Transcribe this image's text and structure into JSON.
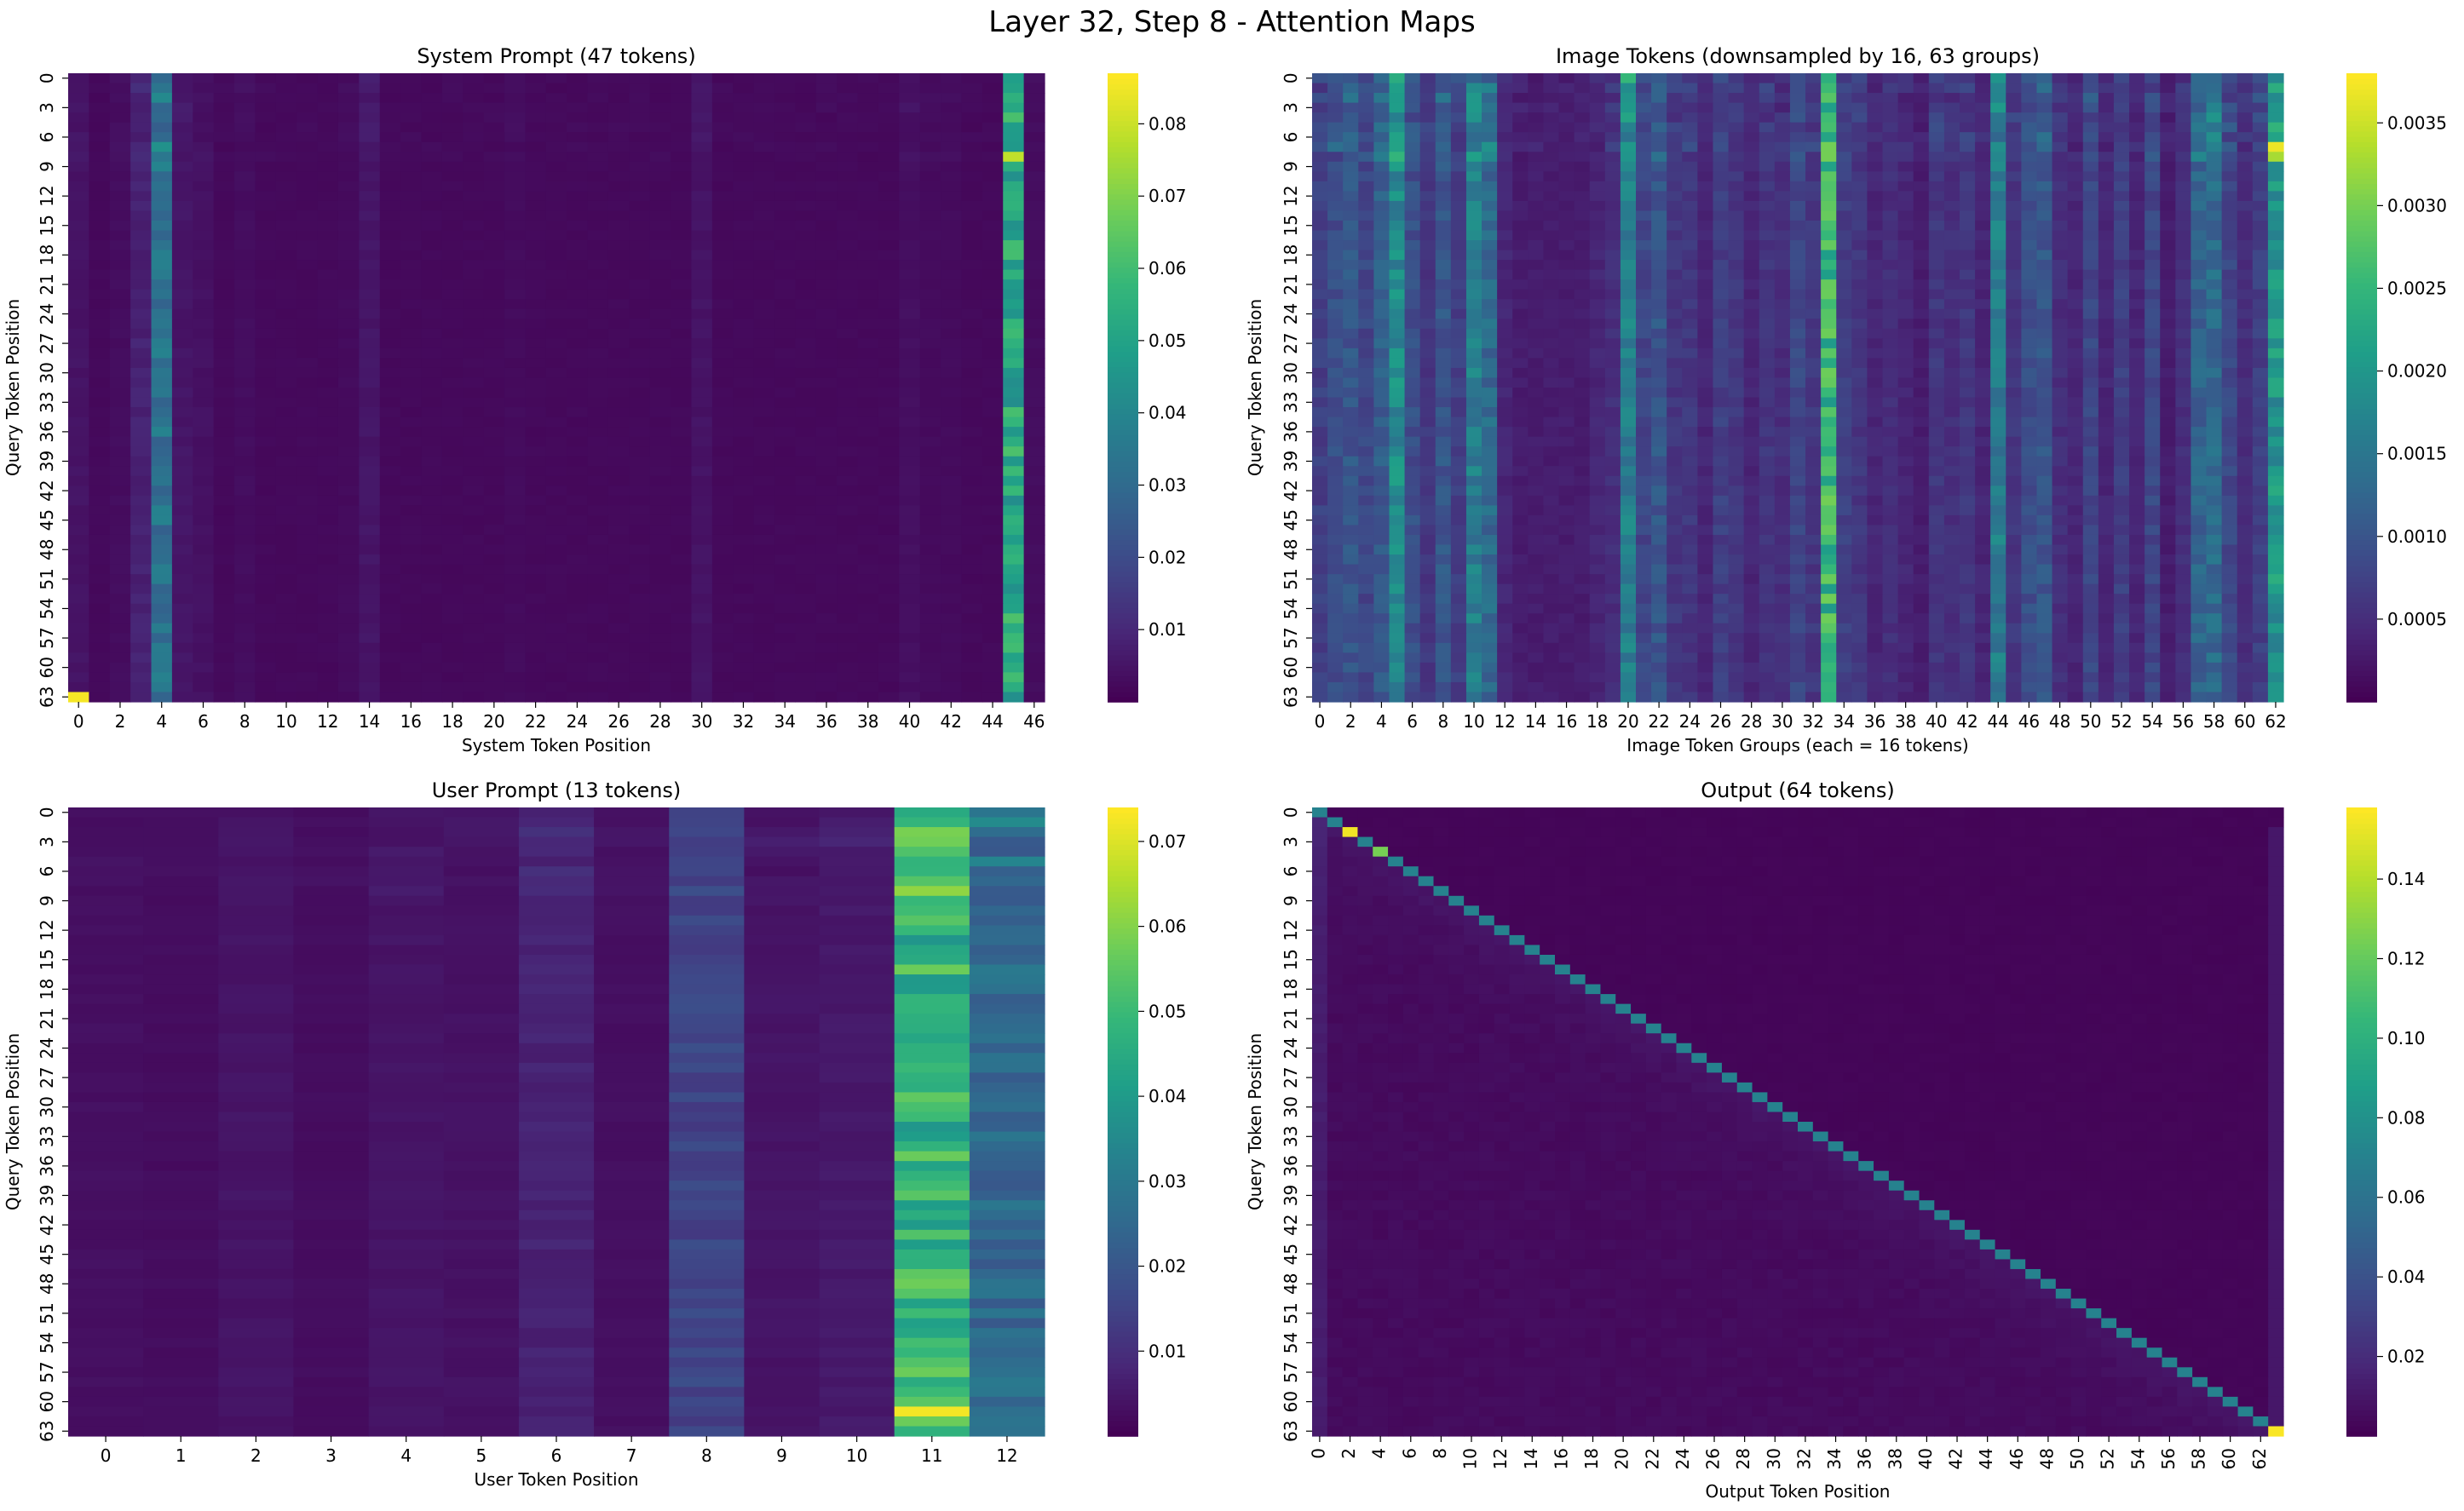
{
  "figure": {
    "title": "Layer 32, Step 8 - Attention Maps"
  },
  "chart_data": [
    {
      "type": "heatmap",
      "id": "system",
      "title": "System Prompt (47 tokens)",
      "xlabel": "System Token Position",
      "ylabel": "Query Token Position",
      "rows": 64,
      "cols": 47,
      "x_ticks": [
        0,
        2,
        4,
        6,
        8,
        10,
        12,
        14,
        16,
        18,
        20,
        22,
        24,
        26,
        28,
        30,
        32,
        34,
        36,
        38,
        40,
        42,
        44,
        46
      ],
      "y_ticks": [
        0,
        3,
        6,
        9,
        12,
        15,
        18,
        21,
        24,
        27,
        30,
        33,
        36,
        39,
        42,
        45,
        48,
        51,
        54,
        57,
        60,
        63
      ],
      "colorbar": {
        "min": 0.0,
        "max": 0.087,
        "ticks": [
          "0.01",
          "0.02",
          "0.03",
          "0.04",
          "0.05",
          "0.06",
          "0.07",
          "0.08"
        ]
      },
      "column_profile": [
        0.0045,
        0.002,
        0.003,
        0.008,
        0.033,
        0.005,
        0.004,
        0.002,
        0.003,
        0.002,
        0.002,
        0.002,
        0.002,
        0.0025,
        0.005,
        0.002,
        0.002,
        0.002,
        0.002,
        0.002,
        0.002,
        0.0025,
        0.002,
        0.002,
        0.002,
        0.002,
        0.002,
        0.002,
        0.002,
        0.002,
        0.0045,
        0.002,
        0.002,
        0.002,
        0.002,
        0.002,
        0.002,
        0.002,
        0.002,
        0.002,
        0.0035,
        0.0025,
        0.0025,
        0.002,
        0.002,
        0.052,
        0.003
      ],
      "highlights": [
        {
          "row": 63,
          "col": 0,
          "value": 0.086
        }
      ]
    },
    {
      "type": "heatmap",
      "id": "image",
      "title": "Image Tokens (downsampled by 16, 63 groups)",
      "xlabel": "Image Token Groups (each = 16 tokens)",
      "ylabel": "Query Token Position",
      "rows": 64,
      "cols": 63,
      "x_ticks": [
        0,
        2,
        4,
        6,
        8,
        10,
        12,
        14,
        16,
        18,
        20,
        22,
        24,
        26,
        28,
        30,
        32,
        34,
        36,
        38,
        40,
        42,
        44,
        46,
        48,
        50,
        52,
        54,
        56,
        58,
        60,
        62
      ],
      "y_ticks": [
        0,
        3,
        6,
        9,
        12,
        15,
        18,
        21,
        24,
        27,
        30,
        33,
        36,
        39,
        42,
        45,
        48,
        51,
        54,
        57,
        60,
        63
      ],
      "colorbar": {
        "min": 0.0,
        "max": 0.0038,
        "ticks": [
          "0.0005",
          "0.0010",
          "0.0015",
          "0.0020",
          "0.0025",
          "0.0030",
          "0.0035"
        ]
      },
      "column_profile": [
        0.0007,
        0.0009,
        0.001,
        0.0008,
        0.0011,
        0.0018,
        0.0009,
        0.0006,
        0.001,
        0.0007,
        0.0016,
        0.0013,
        0.0004,
        0.0003,
        0.0003,
        0.0003,
        0.0003,
        0.0003,
        0.0004,
        0.0005,
        0.0016,
        0.0008,
        0.001,
        0.0006,
        0.0006,
        0.0004,
        0.0007,
        0.0006,
        0.0004,
        0.0006,
        0.0005,
        0.0008,
        0.0006,
        0.0025,
        0.0007,
        0.0006,
        0.0004,
        0.0005,
        0.0004,
        0.0003,
        0.0006,
        0.0005,
        0.0006,
        0.0004,
        0.0016,
        0.0006,
        0.0009,
        0.001,
        0.0005,
        0.0004,
        0.0008,
        0.0004,
        0.0007,
        0.0004,
        0.0008,
        0.0003,
        0.0005,
        0.0012,
        0.0013,
        0.0008,
        0.0005,
        0.0007,
        0.002
      ],
      "highlights": [
        {
          "row": 7,
          "col": 62,
          "value": 0.0037
        },
        {
          "row": 8,
          "col": 62,
          "value": 0.0033
        }
      ]
    },
    {
      "type": "heatmap",
      "id": "user",
      "title": "User Prompt (13 tokens)",
      "xlabel": "User Token Position",
      "ylabel": "Query Token Position",
      "rows": 64,
      "cols": 13,
      "x_ticks": [
        0,
        1,
        2,
        3,
        4,
        5,
        6,
        7,
        8,
        9,
        10,
        11,
        12
      ],
      "y_ticks": [
        0,
        3,
        6,
        9,
        12,
        15,
        18,
        21,
        24,
        27,
        30,
        33,
        36,
        39,
        42,
        45,
        48,
        51,
        54,
        57,
        60,
        63
      ],
      "colorbar": {
        "min": 0.0,
        "max": 0.074,
        "ticks": [
          "0.01",
          "0.02",
          "0.03",
          "0.04",
          "0.05",
          "0.06",
          "0.07"
        ]
      },
      "column_profile": [
        0.003,
        0.0025,
        0.004,
        0.0025,
        0.004,
        0.0035,
        0.007,
        0.003,
        0.015,
        0.004,
        0.005,
        0.048,
        0.025
      ],
      "highlights": [
        {
          "row": 61,
          "col": 11,
          "value": 0.073
        },
        {
          "row": 0,
          "col": 11,
          "value": 0.045
        }
      ]
    },
    {
      "type": "heatmap",
      "id": "output",
      "title": "Output (64 tokens)",
      "xlabel": "Output Token Position",
      "ylabel": "Query Token Position",
      "rows": 64,
      "cols": 64,
      "x_ticks": [
        0,
        2,
        4,
        6,
        8,
        10,
        12,
        14,
        16,
        18,
        20,
        22,
        24,
        26,
        28,
        30,
        32,
        34,
        36,
        38,
        40,
        42,
        44,
        46,
        48,
        50,
        52,
        54,
        56,
        58,
        60,
        62
      ],
      "y_ticks": [
        0,
        3,
        6,
        9,
        12,
        15,
        18,
        21,
        24,
        27,
        30,
        33,
        36,
        39,
        42,
        45,
        48,
        51,
        54,
        57,
        60,
        63
      ],
      "colorbar": {
        "min": 0.0,
        "max": 0.158,
        "ticks": [
          "0.02",
          "0.04",
          "0.06",
          "0.08",
          "0.10",
          "0.12",
          "0.14"
        ]
      },
      "pattern": "causal-diagonal",
      "diagonal_value": 0.07,
      "highlights": [
        {
          "row": 2,
          "col": 2,
          "value": 0.155
        },
        {
          "row": 4,
          "col": 4,
          "value": 0.125
        },
        {
          "row": 63,
          "col": 63,
          "value": 0.157
        }
      ]
    }
  ]
}
